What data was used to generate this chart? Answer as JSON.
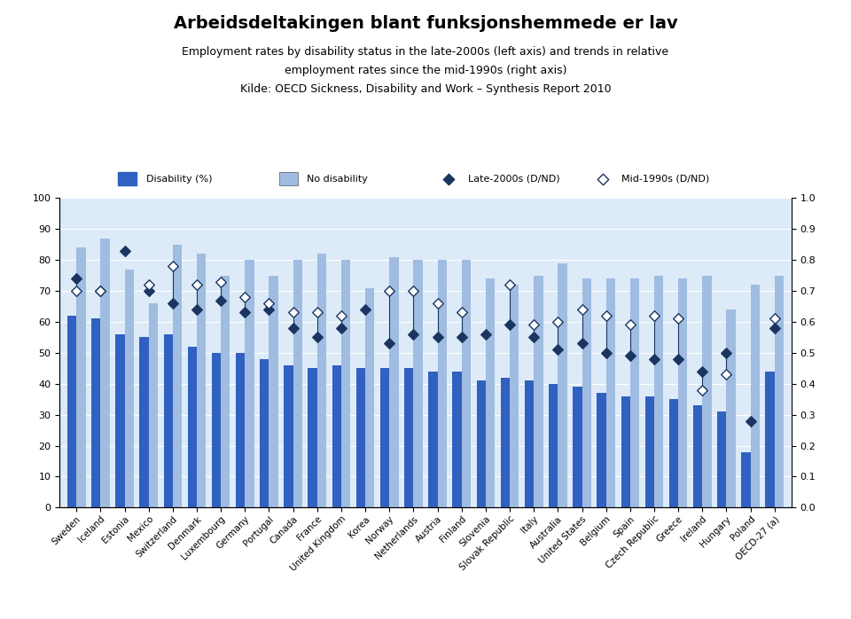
{
  "title": "Arbeidsdeltakingen blant funksjonshemmede er lav",
  "subtitle_line1": "Employment rates by disability status in the late-2000s (left axis) and trends in relative",
  "subtitle_line2": "employment rates since the mid-1990s (right axis)",
  "subtitle_line3": "Kilde: OECD Sickness, Disability and Work – Synthesis Report 2010",
  "countries": [
    "Sweden",
    "Iceland",
    "Estonia",
    "Mexico",
    "Switzerland",
    "Denmark",
    "Luxembourg",
    "Germany",
    "Portugal",
    "Canada",
    "France",
    "United Kingdom",
    "Korea",
    "Norway",
    "Netherlands",
    "Austria",
    "Finland",
    "Slovenia",
    "Slovak Republic",
    "Italy",
    "Australia",
    "United States",
    "Belgium",
    "Spain",
    "Czech Republic",
    "Greece",
    "Ireland",
    "Hungary",
    "Poland",
    "OECD-27 (a)"
  ],
  "disability": [
    62,
    61,
    56,
    55,
    56,
    52,
    50,
    50,
    48,
    46,
    45,
    46,
    45,
    45,
    45,
    44,
    44,
    41,
    42,
    41,
    40,
    39,
    37,
    36,
    36,
    35,
    33,
    31,
    18,
    44
  ],
  "no_disability": [
    84,
    87,
    77,
    66,
    85,
    82,
    75,
    80,
    75,
    80,
    82,
    80,
    71,
    81,
    80,
    80,
    80,
    74,
    72,
    75,
    79,
    74,
    74,
    74,
    75,
    74,
    75,
    64,
    72,
    75
  ],
  "late_2000s": [
    0.74,
    0.7,
    0.83,
    0.7,
    0.66,
    0.64,
    0.67,
    0.63,
    0.64,
    0.58,
    0.55,
    0.58,
    0.64,
    0.53,
    0.56,
    0.55,
    0.55,
    0.56,
    0.59,
    0.55,
    0.51,
    0.53,
    0.5,
    0.49,
    0.48,
    0.48,
    0.44,
    0.5,
    0.28,
    0.58
  ],
  "mid_1990s": [
    0.7,
    0.7,
    null,
    0.72,
    0.78,
    0.72,
    0.73,
    0.68,
    0.66,
    0.63,
    0.63,
    0.62,
    null,
    0.7,
    0.7,
    0.66,
    0.63,
    null,
    0.72,
    0.59,
    0.6,
    0.64,
    0.62,
    0.59,
    0.62,
    0.61,
    0.38,
    0.43,
    null,
    0.61
  ],
  "bar_color_disability": "#3060c0",
  "bar_color_nodisability": "#a0bce0",
  "marker_color_late": "#1a3560",
  "background_color": "#ddeaf8",
  "legend_background": "#ddeaf8",
  "ylim_left": [
    0,
    100
  ],
  "ylim_right": [
    0.0,
    1.0
  ],
  "yticks_left": [
    0,
    10,
    20,
    30,
    40,
    50,
    60,
    70,
    80,
    90,
    100
  ],
  "yticks_right": [
    0.0,
    0.1,
    0.2,
    0.3,
    0.4,
    0.5,
    0.6,
    0.7,
    0.8,
    0.9,
    1.0
  ],
  "fig_width": 9.6,
  "fig_height": 6.98,
  "dpi": 100
}
